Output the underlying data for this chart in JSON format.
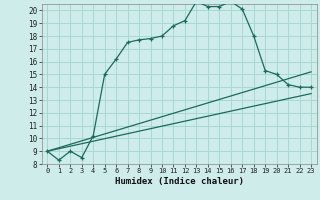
{
  "title": "",
  "xlabel": "Humidex (Indice chaleur)",
  "bg_color": "#ceecea",
  "grid_color": "#a8d8d4",
  "line_color": "#1a6b5a",
  "xlim": [
    -0.5,
    23.5
  ],
  "ylim": [
    8,
    20.5
  ],
  "xticks": [
    0,
    1,
    2,
    3,
    4,
    5,
    6,
    7,
    8,
    9,
    10,
    11,
    12,
    13,
    14,
    15,
    16,
    17,
    18,
    19,
    20,
    21,
    22,
    23
  ],
  "yticks": [
    8,
    9,
    10,
    11,
    12,
    13,
    14,
    15,
    16,
    17,
    18,
    19,
    20
  ],
  "main_x": [
    0,
    1,
    2,
    3,
    4,
    5,
    6,
    7,
    8,
    9,
    10,
    11,
    12,
    13,
    14,
    15,
    16,
    17,
    18,
    19,
    20,
    21,
    22,
    23
  ],
  "main_y": [
    9.0,
    8.3,
    9.0,
    8.5,
    10.2,
    15.0,
    16.2,
    17.5,
    17.7,
    17.8,
    18.0,
    18.8,
    19.2,
    20.7,
    20.3,
    20.3,
    20.7,
    20.1,
    18.0,
    15.3,
    15.0,
    14.2,
    14.0,
    14.0
  ],
  "line2_x": [
    0,
    23
  ],
  "line2_y": [
    9.0,
    15.2
  ],
  "line3_x": [
    0,
    23
  ],
  "line3_y": [
    9.0,
    13.5
  ]
}
